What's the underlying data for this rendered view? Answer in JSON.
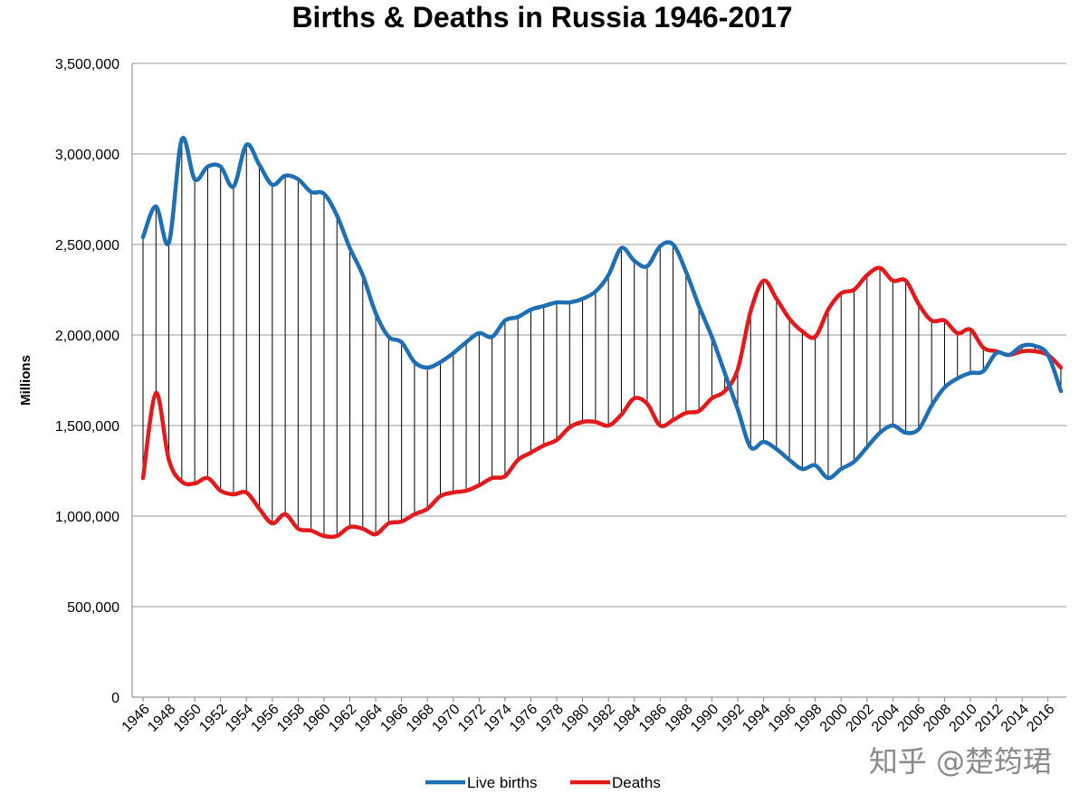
{
  "chart_data": {
    "type": "line",
    "title": "Births & Deaths in Russia 1946-2017",
    "ylabel": "Millions",
    "xlabel": "",
    "ylim": [
      0,
      3500000
    ],
    "yticks": [
      0,
      500000,
      1000000,
      1500000,
      2000000,
      2500000,
      3000000,
      3500000
    ],
    "ytick_labels": [
      "0",
      "500,000",
      "1,000,000",
      "1,500,000",
      "2,000,000",
      "2,500,000",
      "3,000,000",
      "3,500,000"
    ],
    "xtick_labels": [
      "1946",
      "1948",
      "1950",
      "1952",
      "1954",
      "1956",
      "1958",
      "1960",
      "1962",
      "1964",
      "1966",
      "1968",
      "1970",
      "1972",
      "1974",
      "1976",
      "1978",
      "1980",
      "1982",
      "1984",
      "1986",
      "1988",
      "1990",
      "1992",
      "1994",
      "1996",
      "1998",
      "2000",
      "2002",
      "2004",
      "2006",
      "2008",
      "2010",
      "2012",
      "2014",
      "2016"
    ],
    "x": [
      1946,
      1947,
      1948,
      1949,
      1950,
      1951,
      1952,
      1953,
      1954,
      1955,
      1956,
      1957,
      1958,
      1959,
      1960,
      1961,
      1962,
      1963,
      1964,
      1965,
      1966,
      1967,
      1968,
      1969,
      1970,
      1971,
      1972,
      1973,
      1974,
      1975,
      1976,
      1977,
      1978,
      1979,
      1980,
      1981,
      1982,
      1983,
      1984,
      1985,
      1986,
      1987,
      1988,
      1989,
      1990,
      1991,
      1992,
      1993,
      1994,
      1995,
      1996,
      1997,
      1998,
      1999,
      2000,
      2001,
      2002,
      2003,
      2004,
      2005,
      2006,
      2007,
      2008,
      2009,
      2010,
      2011,
      2012,
      2013,
      2014,
      2015,
      2016,
      2017
    ],
    "grid": true,
    "legend_position": "bottom",
    "difference_hatching": true,
    "series": [
      {
        "name": "Live births",
        "color": "#1F6FB5",
        "values": [
          2540000,
          2710000,
          2510000,
          3080000,
          2860000,
          2930000,
          2930000,
          2820000,
          3050000,
          2940000,
          2830000,
          2880000,
          2860000,
          2790000,
          2780000,
          2660000,
          2480000,
          2330000,
          2120000,
          1990000,
          1960000,
          1850000,
          1820000,
          1850000,
          1900000,
          1960000,
          2010000,
          1990000,
          2080000,
          2100000,
          2140000,
          2160000,
          2180000,
          2180000,
          2200000,
          2240000,
          2330000,
          2480000,
          2410000,
          2380000,
          2490000,
          2500000,
          2350000,
          2160000,
          1990000,
          1790000,
          1590000,
          1380000,
          1410000,
          1370000,
          1310000,
          1260000,
          1280000,
          1210000,
          1260000,
          1300000,
          1380000,
          1460000,
          1500000,
          1460000,
          1480000,
          1610000,
          1710000,
          1760000,
          1790000,
          1800000,
          1900000,
          1890000,
          1940000,
          1940000,
          1890000,
          1690000
        ]
      },
      {
        "name": "Deaths",
        "color": "#E31A1C",
        "values": [
          1210000,
          1680000,
          1310000,
          1190000,
          1180000,
          1210000,
          1140000,
          1120000,
          1130000,
          1040000,
          960000,
          1010000,
          930000,
          920000,
          890000,
          890000,
          940000,
          930000,
          900000,
          960000,
          970000,
          1010000,
          1040000,
          1110000,
          1130000,
          1140000,
          1170000,
          1210000,
          1220000,
          1310000,
          1350000,
          1390000,
          1420000,
          1490000,
          1520000,
          1520000,
          1500000,
          1560000,
          1650000,
          1620000,
          1500000,
          1530000,
          1570000,
          1580000,
          1650000,
          1690000,
          1810000,
          2130000,
          2300000,
          2200000,
          2090000,
          2020000,
          1990000,
          2140000,
          2230000,
          2250000,
          2330000,
          2370000,
          2300000,
          2300000,
          2170000,
          2080000,
          2080000,
          2010000,
          2030000,
          1930000,
          1910000,
          1890000,
          1910000,
          1910000,
          1890000,
          1820000
        ]
      }
    ]
  },
  "watermark": {
    "text": "知乎 @楚筠珺"
  }
}
